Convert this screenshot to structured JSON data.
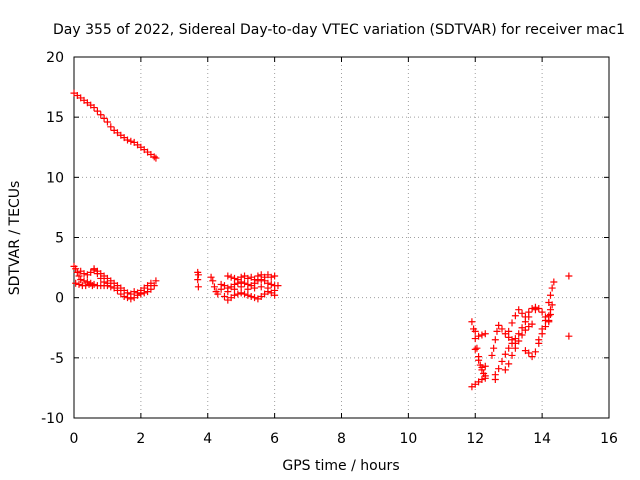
{
  "chart_data": {
    "type": "scatter",
    "title": "Day 355 of 2022, Sidereal Day-to-day VTEC variation (SDTVAR) for receiver mac1",
    "xlabel": "GPS time / hours",
    "ylabel": "SDTVAR / TECUs",
    "xlim": [
      0,
      16
    ],
    "ylim": [
      -10,
      20
    ],
    "xticks": [
      0,
      2,
      4,
      6,
      8,
      10,
      12,
      14,
      16
    ],
    "yticks": [
      -10,
      -5,
      0,
      5,
      10,
      15,
      20
    ],
    "grid": true,
    "marker": "+",
    "color": "#ff0000",
    "series": [
      {
        "name": "sdtvar",
        "points": [
          [
            0.0,
            17.0
          ],
          [
            0.1,
            16.8
          ],
          [
            0.2,
            16.6
          ],
          [
            0.3,
            16.4
          ],
          [
            0.4,
            16.2
          ],
          [
            0.5,
            16.0
          ],
          [
            0.6,
            15.8
          ],
          [
            0.7,
            15.5
          ],
          [
            0.8,
            15.2
          ],
          [
            0.9,
            14.9
          ],
          [
            1.0,
            14.6
          ],
          [
            1.1,
            14.2
          ],
          [
            1.2,
            13.9
          ],
          [
            1.3,
            13.7
          ],
          [
            1.4,
            13.5
          ],
          [
            1.5,
            13.3
          ],
          [
            1.6,
            13.1
          ],
          [
            1.7,
            13.0
          ],
          [
            1.8,
            12.9
          ],
          [
            1.9,
            12.7
          ],
          [
            2.0,
            12.5
          ],
          [
            2.1,
            12.3
          ],
          [
            2.2,
            12.1
          ],
          [
            2.3,
            11.9
          ],
          [
            2.4,
            11.7
          ],
          [
            2.45,
            11.6
          ],
          [
            0.0,
            2.6
          ],
          [
            0.05,
            2.4
          ],
          [
            0.1,
            2.1
          ],
          [
            0.15,
            1.8
          ],
          [
            0.2,
            1.5
          ],
          [
            0.3,
            1.4
          ],
          [
            0.4,
            1.3
          ],
          [
            0.5,
            1.2
          ],
          [
            0.6,
            1.1
          ],
          [
            0.7,
            1.0
          ],
          [
            0.8,
            1.0
          ],
          [
            0.9,
            1.0
          ],
          [
            1.0,
            1.0
          ],
          [
            1.1,
            0.9
          ],
          [
            1.2,
            0.8
          ],
          [
            1.3,
            0.6
          ],
          [
            1.4,
            0.3
          ],
          [
            1.5,
            0.1
          ],
          [
            1.6,
            0.0
          ],
          [
            1.7,
            -0.1
          ],
          [
            1.8,
            0.0
          ],
          [
            1.9,
            0.2
          ],
          [
            2.0,
            0.3
          ],
          [
            2.1,
            0.4
          ],
          [
            2.2,
            0.5
          ],
          [
            2.3,
            0.7
          ],
          [
            2.4,
            1.0
          ],
          [
            2.45,
            1.4
          ],
          [
            0.05,
            1.2
          ],
          [
            0.15,
            1.1
          ],
          [
            0.25,
            1.0
          ],
          [
            0.35,
            1.0
          ],
          [
            0.45,
            1.1
          ],
          [
            0.55,
            1.0
          ],
          [
            0.2,
            2.2
          ],
          [
            0.3,
            2.0
          ],
          [
            0.4,
            1.9
          ],
          [
            0.5,
            2.1
          ],
          [
            0.6,
            2.3
          ],
          [
            0.7,
            2.2
          ],
          [
            0.8,
            2.0
          ],
          [
            0.9,
            1.8
          ],
          [
            1.0,
            1.6
          ],
          [
            1.1,
            1.4
          ],
          [
            1.2,
            1.2
          ],
          [
            1.3,
            1.0
          ],
          [
            1.4,
            0.8
          ],
          [
            1.5,
            0.6
          ],
          [
            1.6,
            0.4
          ],
          [
            1.7,
            0.3
          ],
          [
            1.8,
            0.5
          ],
          [
            1.9,
            0.4
          ],
          [
            2.0,
            0.6
          ],
          [
            2.1,
            0.8
          ],
          [
            2.2,
            1.0
          ],
          [
            2.3,
            1.2
          ],
          [
            0.6,
            2.4
          ],
          [
            0.7,
            2.0
          ],
          [
            0.8,
            1.6
          ],
          [
            0.9,
            1.3
          ],
          [
            1.0,
            1.2
          ],
          [
            3.7,
            2.1
          ],
          [
            3.72,
            1.9
          ],
          [
            3.7,
            1.5
          ],
          [
            3.72,
            0.9
          ],
          [
            4.1,
            1.7
          ],
          [
            4.15,
            1.4
          ],
          [
            4.2,
            0.9
          ],
          [
            4.25,
            0.5
          ],
          [
            4.3,
            0.3
          ],
          [
            4.4,
            1.1
          ],
          [
            4.5,
            1.0
          ],
          [
            4.6,
            0.8
          ],
          [
            4.7,
            0.9
          ],
          [
            4.8,
            1.1
          ],
          [
            4.9,
            1.2
          ],
          [
            5.0,
            1.3
          ],
          [
            5.1,
            1.2
          ],
          [
            5.2,
            1.1
          ],
          [
            5.3,
            1.0
          ],
          [
            5.4,
            1.2
          ],
          [
            5.5,
            1.4
          ],
          [
            5.6,
            1.5
          ],
          [
            5.7,
            1.4
          ],
          [
            5.8,
            1.2
          ],
          [
            5.9,
            1.1
          ],
          [
            6.0,
            1.0
          ],
          [
            6.1,
            1.0
          ],
          [
            4.5,
            0.1
          ],
          [
            4.6,
            -0.2
          ],
          [
            4.7,
            0.0
          ],
          [
            4.8,
            0.2
          ],
          [
            4.9,
            0.3
          ],
          [
            5.0,
            0.4
          ],
          [
            5.1,
            0.3
          ],
          [
            5.2,
            0.2
          ],
          [
            5.3,
            0.1
          ],
          [
            5.4,
            0.0
          ],
          [
            5.5,
            -0.1
          ],
          [
            5.6,
            0.1
          ],
          [
            5.7,
            0.3
          ],
          [
            5.8,
            0.5
          ],
          [
            5.9,
            0.4
          ],
          [
            6.0,
            0.2
          ],
          [
            4.6,
            1.8
          ],
          [
            4.7,
            1.7
          ],
          [
            4.8,
            1.6
          ],
          [
            4.9,
            1.5
          ],
          [
            5.0,
            1.7
          ],
          [
            5.1,
            1.8
          ],
          [
            5.2,
            1.6
          ],
          [
            5.3,
            1.7
          ],
          [
            5.4,
            1.5
          ],
          [
            5.5,
            1.8
          ],
          [
            5.6,
            1.9
          ],
          [
            5.7,
            1.7
          ],
          [
            5.8,
            1.9
          ],
          [
            5.9,
            1.7
          ],
          [
            6.0,
            1.8
          ],
          [
            4.4,
            0.7
          ],
          [
            4.6,
            0.5
          ],
          [
            4.8,
            0.7
          ],
          [
            5.0,
            0.9
          ],
          [
            5.2,
            0.7
          ],
          [
            5.4,
            0.8
          ],
          [
            5.6,
            0.9
          ],
          [
            5.8,
            0.8
          ],
          [
            6.0,
            0.6
          ],
          [
            11.9,
            -7.4
          ],
          [
            12.0,
            -7.2
          ],
          [
            12.1,
            -7.0
          ],
          [
            12.2,
            -6.8
          ],
          [
            12.3,
            -6.5
          ],
          [
            11.9,
            -2.0
          ],
          [
            11.95,
            -2.6
          ],
          [
            12.0,
            -3.4
          ],
          [
            12.05,
            -4.2
          ],
          [
            12.1,
            -4.9
          ],
          [
            12.15,
            -5.6
          ],
          [
            12.2,
            -6.0
          ],
          [
            12.25,
            -6.3
          ],
          [
            12.3,
            -6.7
          ],
          [
            12.0,
            -2.8
          ],
          [
            12.1,
            -3.2
          ],
          [
            12.2,
            -3.1
          ],
          [
            12.3,
            -3.0
          ],
          [
            12.0,
            -4.3
          ],
          [
            12.1,
            -5.2
          ],
          [
            12.2,
            -5.8
          ],
          [
            12.3,
            -5.7
          ],
          [
            12.5,
            -4.8
          ],
          [
            12.55,
            -4.2
          ],
          [
            12.6,
            -3.5
          ],
          [
            12.65,
            -2.8
          ],
          [
            12.7,
            -2.3
          ],
          [
            12.8,
            -2.6
          ],
          [
            12.9,
            -3.0
          ],
          [
            13.0,
            -3.3
          ],
          [
            13.1,
            -3.5
          ],
          [
            13.2,
            -3.8
          ],
          [
            12.6,
            -6.8
          ],
          [
            12.6,
            -6.4
          ],
          [
            12.7,
            -5.9
          ],
          [
            12.8,
            -5.3
          ],
          [
            12.9,
            -4.7
          ],
          [
            13.0,
            -4.2
          ],
          [
            13.1,
            -3.8
          ],
          [
            13.2,
            -3.4
          ],
          [
            13.3,
            -3.0
          ],
          [
            13.4,
            -2.5
          ],
          [
            13.5,
            -2.0
          ],
          [
            13.6,
            -1.6
          ],
          [
            12.9,
            -6.0
          ],
          [
            13.0,
            -5.5
          ],
          [
            13.1,
            -4.8
          ],
          [
            13.2,
            -4.2
          ],
          [
            13.3,
            -3.6
          ],
          [
            13.4,
            -3.1
          ],
          [
            13.5,
            -2.7
          ],
          [
            13.6,
            -2.4
          ],
          [
            13.7,
            -2.2
          ],
          [
            13.0,
            -2.8
          ],
          [
            13.1,
            -2.1
          ],
          [
            13.2,
            -1.5
          ],
          [
            13.3,
            -1.0
          ],
          [
            13.4,
            -1.3
          ],
          [
            13.5,
            -1.6
          ],
          [
            13.6,
            -1.2
          ],
          [
            13.7,
            -0.9
          ],
          [
            13.8,
            -1.0
          ],
          [
            13.5,
            -4.4
          ],
          [
            13.6,
            -4.6
          ],
          [
            13.7,
            -4.9
          ],
          [
            13.8,
            -4.5
          ],
          [
            13.9,
            -3.8
          ],
          [
            14.0,
            -3.0
          ],
          [
            14.1,
            -2.4
          ],
          [
            14.2,
            -1.9
          ],
          [
            14.25,
            -1.4
          ],
          [
            13.8,
            -0.8
          ],
          [
            13.9,
            -0.9
          ],
          [
            14.0,
            -1.2
          ],
          [
            14.1,
            -1.6
          ],
          [
            14.2,
            -2.0
          ],
          [
            13.9,
            -3.5
          ],
          [
            14.0,
            -2.6
          ],
          [
            14.1,
            -1.9
          ],
          [
            14.2,
            -1.5
          ],
          [
            14.25,
            -1.0
          ],
          [
            14.3,
            -0.6
          ],
          [
            14.2,
            -0.4
          ],
          [
            14.25,
            0.2
          ],
          [
            14.3,
            0.8
          ],
          [
            14.35,
            1.3
          ],
          [
            14.8,
            1.8
          ],
          [
            14.8,
            -3.2
          ]
        ]
      }
    ]
  }
}
